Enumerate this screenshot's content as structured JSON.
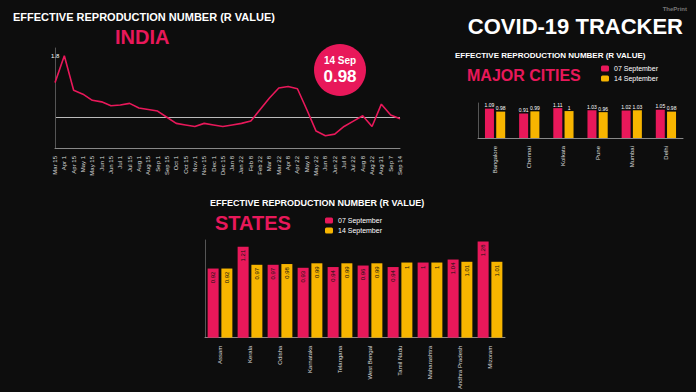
{
  "title": "COVID-19 TRACKER",
  "watermark": "ThePrint",
  "chart_data": [
    {
      "type": "line",
      "subtitle": "EFFECTIVE REPRODUCTION NUMBER (R VALUE)",
      "title": "INDIA",
      "categories": [
        "Mar 15",
        "Apr 1",
        "Apr 15",
        "May 1",
        "May 15",
        "Jun 1",
        "Jun 15",
        "Jul 1",
        "Jul 15",
        "Aug 1",
        "Aug 15",
        "Sep 1",
        "Sep 15",
        "Oct 1",
        "Oct 15",
        "Nov 1",
        "Nov 15",
        "Dec 1",
        "Dec 15",
        "Jan 8",
        "Jan 22",
        "Feb 8",
        "Feb 22",
        "Mar 8",
        "Mar 22",
        "Apr 8",
        "Apr 22",
        "May 8",
        "May 22",
        "Jun 8",
        "Jun 22",
        "Jul 8",
        "Jul 22",
        "Aug 8",
        "Aug 22",
        "Aug 31",
        "Sep 7",
        "Sep 14"
      ],
      "values": [
        1.45,
        1.8,
        1.35,
        1.3,
        1.22,
        1.2,
        1.15,
        1.16,
        1.18,
        1.12,
        1.1,
        1.08,
        1.0,
        0.92,
        0.9,
        0.88,
        0.92,
        0.9,
        0.88,
        0.9,
        0.92,
        0.95,
        1.1,
        1.25,
        1.38,
        1.4,
        1.37,
        1.1,
        0.82,
        0.76,
        0.78,
        0.88,
        0.95,
        1.02,
        0.88,
        1.17,
        1.03,
        0.98
      ],
      "color": "#e8185a",
      "ylim": [
        0.6,
        1.9
      ],
      "yticks": [
        1
      ],
      "grid": true,
      "tick_labels": "x",
      "annotations": [
        {
          "category": "Apr 1",
          "value": 1.8,
          "text": "1.8"
        }
      ],
      "badge": {
        "label": "14 Sep",
        "value": 0.98
      }
    },
    {
      "type": "bar",
      "subtitle": "EFFECTIVE REPRODUCTION NUMBER (R VALUE)",
      "title": "MAJOR CITIES",
      "categories": [
        "Bangalore",
        "Chennai",
        "Kolkata",
        "Pune",
        "Mumbai",
        "Delhi"
      ],
      "series": [
        {
          "name": "07 September",
          "color": "#e8185a",
          "values": [
            1.09,
            0.91,
            1.11,
            1.03,
            1.02,
            1.05
          ]
        },
        {
          "name": "14 September",
          "color": "#f7b500",
          "values": [
            0.98,
            0.99,
            1,
            0.96,
            1.03,
            0.98
          ]
        }
      ],
      "ylim": [
        0,
        1.3
      ],
      "grid": false,
      "tick_labels": "x",
      "data_labels": true,
      "legend": "top-right"
    },
    {
      "type": "bar",
      "subtitle": "EFFECTIVE REPRODUCTION NUMBER (R VALUE)",
      "title": "STATES",
      "categories": [
        "Assam",
        "Kerala",
        "Odisha",
        "Karnataka",
        "Telangana",
        "West Bengal",
        "Tamil Nadu",
        "Maharashtra",
        "Andhra Pradesh",
        "Mizoram"
      ],
      "series": [
        {
          "name": "07 September",
          "color": "#e8185a",
          "values": [
            0.92,
            1.21,
            0.97,
            0.93,
            0.94,
            0.96,
            0.94,
            1,
            1.04,
            1.28
          ]
        },
        {
          "name": "14 September",
          "color": "#f7b500",
          "values": [
            0.92,
            0.97,
            0.98,
            0.99,
            0.99,
            0.99,
            1,
            1,
            1.01,
            1.01
          ]
        }
      ],
      "ylim": [
        0,
        1.3
      ],
      "grid": false,
      "tick_labels": "x",
      "data_labels": true,
      "legend": "top-left"
    }
  ]
}
